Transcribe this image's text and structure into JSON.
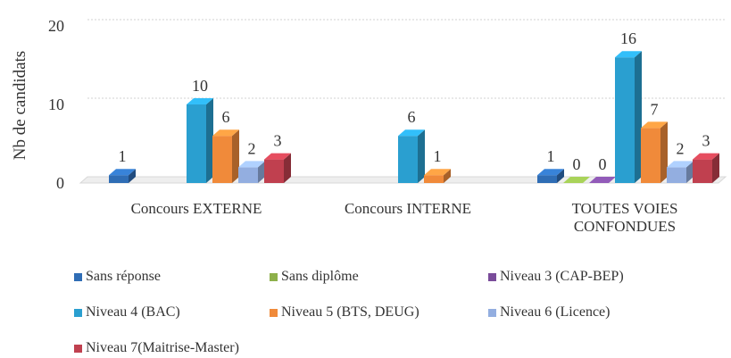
{
  "chart_data": {
    "type": "bar3d",
    "y_label": "Nb de candidats",
    "categories": [
      "Concours EXTERNE",
      "Concours INTERNE",
      "TOUTES VOIES CONFONDUES"
    ],
    "series": [
      {
        "name": "Sans réponse",
        "color": "#2f6db5",
        "values": [
          1,
          null,
          1
        ]
      },
      {
        "name": "Sans diplôme",
        "color": "#8db04a",
        "values": [
          null,
          null,
          0
        ]
      },
      {
        "name": "Niveau 3 (CAP-BEP)",
        "color": "#7a4c9a",
        "values": [
          null,
          null,
          0
        ]
      },
      {
        "name": "Niveau 4 (BAC)",
        "color": "#2a9fd0",
        "values": [
          10,
          6,
          16
        ]
      },
      {
        "name": "Niveau 5 (BTS, DEUG)",
        "color": "#f08a3a",
        "values": [
          6,
          1,
          7
        ]
      },
      {
        "name": "Niveau 6 (Licence)",
        "color": "#93aee0",
        "values": [
          2,
          null,
          2
        ]
      },
      {
        "name": "Niveau 7(Maitrise-Master)",
        "color": "#c0404f",
        "values": [
          3,
          null,
          3
        ]
      }
    ],
    "ylim": [
      0,
      20
    ],
    "yticks": [
      0,
      10,
      20
    ],
    "grid": true,
    "legend": "bottom"
  }
}
